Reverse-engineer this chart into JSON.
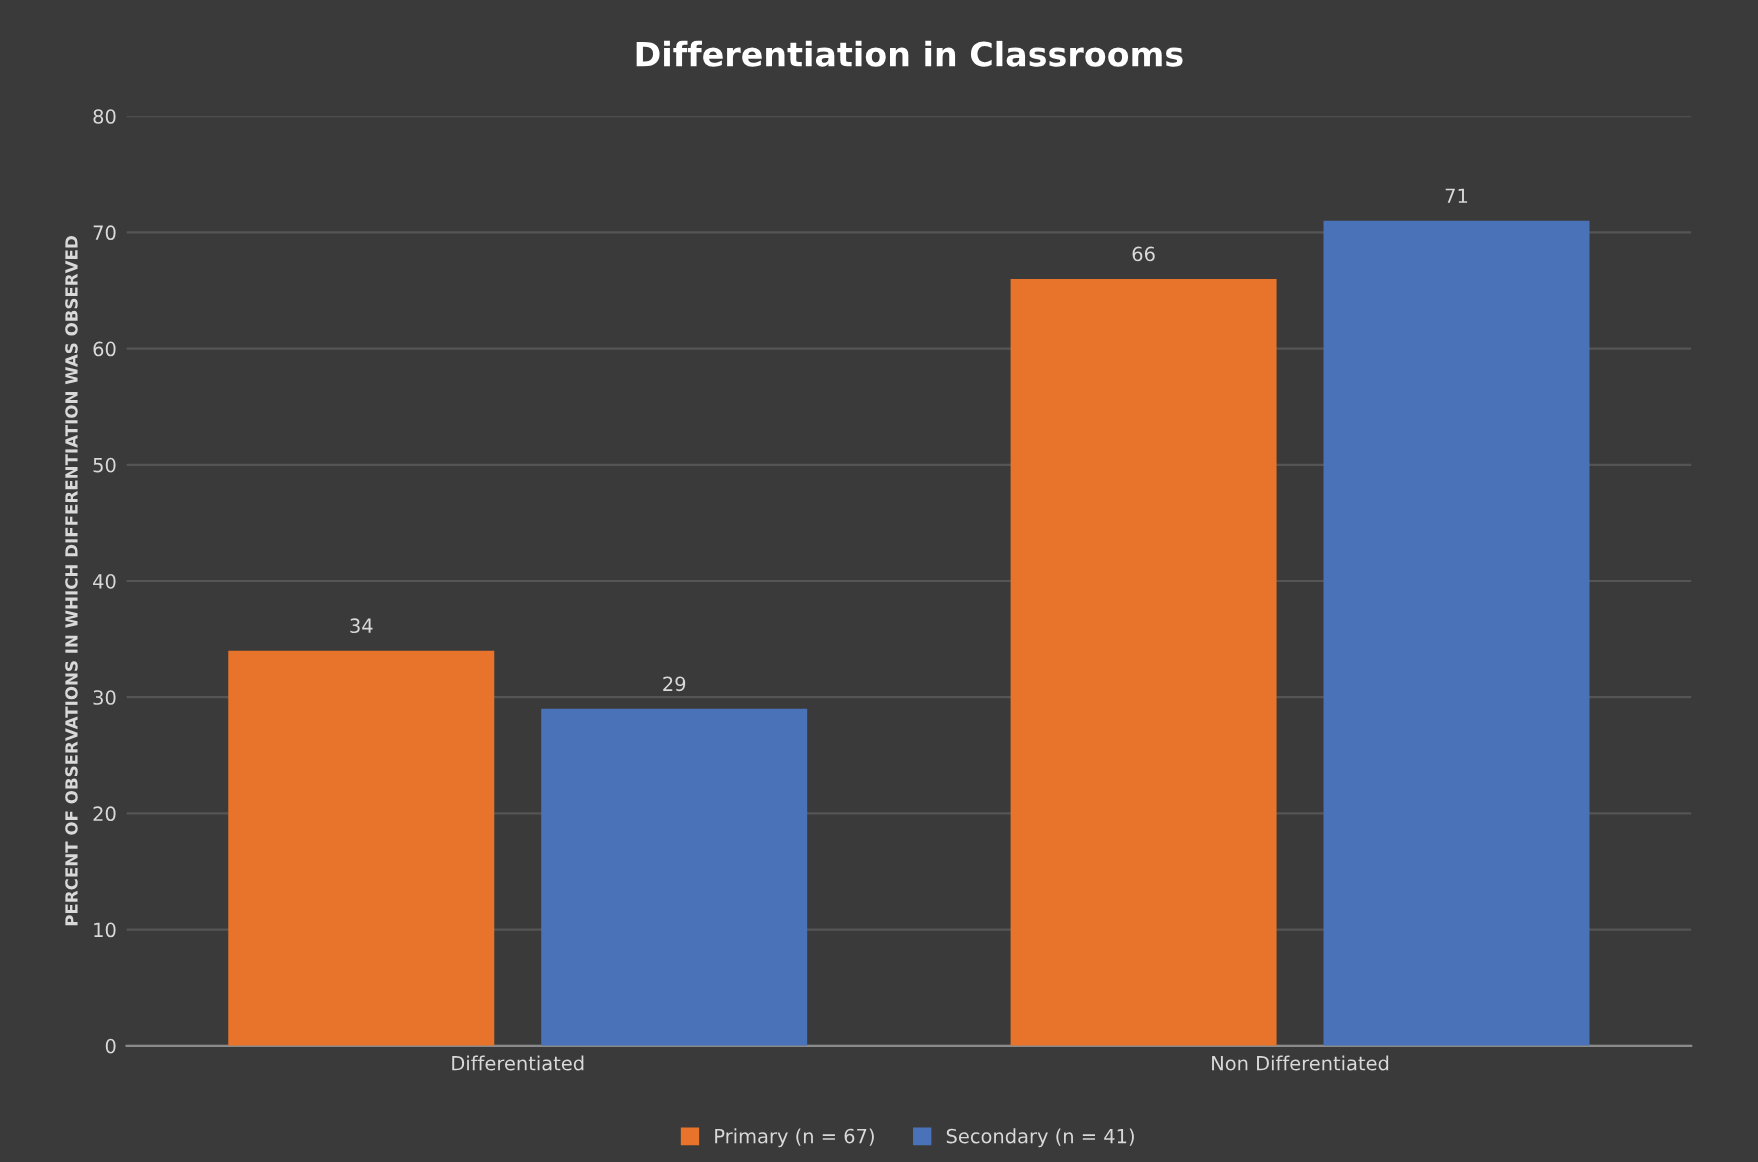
{
  "chart_data": {
    "type": "bar",
    "title": "Differentiation in Classrooms",
    "ylabel": "PERCENT OF OBSERVATIONS IN WHICH DIFFERENTIATION WAS OBSERVED",
    "categories": [
      "Differentiated",
      "Non Differentiated"
    ],
    "series": [
      {
        "name": "Primary (n = 67)",
        "color": "#e8742c",
        "values": [
          34,
          66
        ]
      },
      {
        "name": "Secondary (n = 41)",
        "color": "#4a72b8",
        "values": [
          29,
          71
        ]
      }
    ],
    "ylim": [
      0,
      80
    ],
    "yticks": [
      0,
      10,
      20,
      30,
      40,
      50,
      60,
      70,
      80
    ],
    "grid": "y",
    "legend": "bottom",
    "data_labels": true
  }
}
